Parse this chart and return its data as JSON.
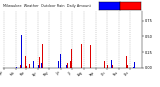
{
  "title": "Milwaukee  Weather  Outdoor Rain  Daily Amount",
  "bar_color_current": "#0000dd",
  "bar_color_previous": "#dd0000",
  "num_days": 365,
  "background_color": "#ffffff",
  "grid_color": "#888888",
  "ylim_max": 0.9,
  "legend_blue": "#0000ff",
  "legend_red": "#ff0000",
  "month_starts": [
    0,
    31,
    59,
    90,
    120,
    151,
    181,
    212,
    243,
    273,
    304,
    334
  ],
  "month_labels": [
    "Jan",
    "Feb",
    "Mar",
    "Apr",
    "May",
    "Jun",
    "Jul",
    "Aug",
    "Sep",
    "Oct",
    "Nov",
    "Dec"
  ],
  "current_seed": 12,
  "previous_seed": 77,
  "rainy_days_current": 90,
  "rainy_days_previous": 90
}
